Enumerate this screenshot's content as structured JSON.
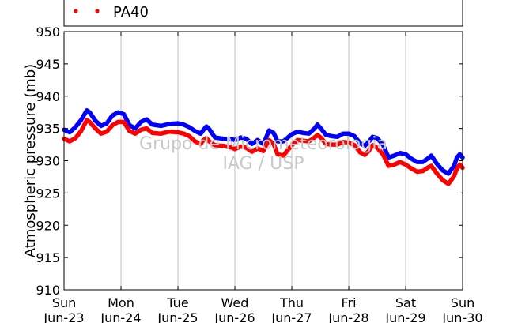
{
  "chart_data": {
    "type": "line",
    "ylabel": "Atmospheric pressure (mb)",
    "ylim": [
      910,
      950
    ],
    "yticks": [
      910,
      915,
      920,
      925,
      930,
      935,
      940,
      945,
      950
    ],
    "xlim": [
      0,
      7
    ],
    "xticks": [
      {
        "x": 0,
        "day": "Sun",
        "date": "Jun-23"
      },
      {
        "x": 1,
        "day": "Mon",
        "date": "Jun-24"
      },
      {
        "x": 2,
        "day": "Tue",
        "date": "Jun-25"
      },
      {
        "x": 3,
        "day": "Wed",
        "date": "Jun-26"
      },
      {
        "x": 4,
        "day": "Thu",
        "date": "Jun-27"
      },
      {
        "x": 5,
        "day": "Fri",
        "date": "Jun-28"
      },
      {
        "x": 6,
        "day": "Sat",
        "date": "Jun-29"
      },
      {
        "x": 7,
        "day": "Sun",
        "date": "Jun-30"
      }
    ],
    "grid": "vertical",
    "legend": {
      "placement": "top",
      "visible_entry": "PA40"
    },
    "watermark": [
      "Grupo de Micrometeorologia",
      "IAG / USP"
    ],
    "series": [
      {
        "color": "#0000ff",
        "points": [
          [
            0.0,
            934.8
          ],
          [
            0.1,
            934.4
          ],
          [
            0.2,
            935.2
          ],
          [
            0.3,
            936.3
          ],
          [
            0.4,
            937.8
          ],
          [
            0.45,
            937.5
          ],
          [
            0.55,
            936.2
          ],
          [
            0.65,
            935.4
          ],
          [
            0.75,
            935.8
          ],
          [
            0.85,
            937.0
          ],
          [
            0.95,
            937.5
          ],
          [
            1.05,
            937.2
          ],
          [
            1.15,
            935.5
          ],
          [
            1.25,
            935.0
          ],
          [
            1.35,
            936.0
          ],
          [
            1.45,
            936.4
          ],
          [
            1.55,
            935.6
          ],
          [
            1.7,
            935.4
          ],
          [
            1.85,
            935.7
          ],
          [
            2.0,
            935.8
          ],
          [
            2.1,
            935.6
          ],
          [
            2.2,
            935.2
          ],
          [
            2.3,
            934.6
          ],
          [
            2.4,
            934.2
          ],
          [
            2.45,
            934.8
          ],
          [
            2.5,
            935.3
          ],
          [
            2.55,
            934.9
          ],
          [
            2.65,
            933.6
          ],
          [
            2.8,
            933.4
          ],
          [
            2.95,
            933.3
          ],
          [
            3.0,
            933.2
          ],
          [
            3.1,
            933.6
          ],
          [
            3.2,
            933.4
          ],
          [
            3.3,
            932.6
          ],
          [
            3.4,
            933.2
          ],
          [
            3.5,
            932.6
          ],
          [
            3.55,
            933.6
          ],
          [
            3.6,
            934.7
          ],
          [
            3.68,
            934.3
          ],
          [
            3.75,
            933.0
          ],
          [
            3.85,
            933.0
          ],
          [
            4.0,
            934.1
          ],
          [
            4.1,
            934.5
          ],
          [
            4.2,
            934.3
          ],
          [
            4.3,
            934.2
          ],
          [
            4.4,
            935.0
          ],
          [
            4.45,
            935.6
          ],
          [
            4.52,
            934.9
          ],
          [
            4.6,
            934.0
          ],
          [
            4.7,
            933.8
          ],
          [
            4.8,
            933.7
          ],
          [
            4.9,
            934.2
          ],
          [
            5.0,
            934.2
          ],
          [
            5.1,
            933.8
          ],
          [
            5.2,
            932.7
          ],
          [
            5.28,
            932.3
          ],
          [
            5.35,
            932.9
          ],
          [
            5.42,
            933.7
          ],
          [
            5.5,
            933.5
          ],
          [
            5.6,
            932.5
          ],
          [
            5.7,
            930.5
          ],
          [
            5.8,
            930.8
          ],
          [
            5.9,
            931.2
          ],
          [
            6.0,
            931.0
          ],
          [
            6.1,
            930.3
          ],
          [
            6.2,
            929.8
          ],
          [
            6.3,
            929.8
          ],
          [
            6.4,
            930.4
          ],
          [
            6.45,
            930.8
          ],
          [
            6.55,
            929.5
          ],
          [
            6.65,
            928.5
          ],
          [
            6.75,
            928.0
          ],
          [
            6.85,
            929.2
          ],
          [
            6.9,
            930.5
          ],
          [
            6.95,
            931.0
          ],
          [
            7.0,
            930.5
          ]
        ]
      },
      {
        "color": "#ff0000",
        "points": [
          [
            0.0,
            933.4
          ],
          [
            0.1,
            933.0
          ],
          [
            0.2,
            933.5
          ],
          [
            0.3,
            934.6
          ],
          [
            0.4,
            936.3
          ],
          [
            0.45,
            936.0
          ],
          [
            0.55,
            935.0
          ],
          [
            0.65,
            934.2
          ],
          [
            0.75,
            934.5
          ],
          [
            0.85,
            935.5
          ],
          [
            0.95,
            936.0
          ],
          [
            1.05,
            936.0
          ],
          [
            1.15,
            934.6
          ],
          [
            1.25,
            934.2
          ],
          [
            1.35,
            934.8
          ],
          [
            1.45,
            935.0
          ],
          [
            1.55,
            934.3
          ],
          [
            1.7,
            934.2
          ],
          [
            1.85,
            934.5
          ],
          [
            2.0,
            934.4
          ],
          [
            2.1,
            934.2
          ],
          [
            2.2,
            933.8
          ],
          [
            2.3,
            933.0
          ],
          [
            2.4,
            932.6
          ],
          [
            2.45,
            933.2
          ],
          [
            2.5,
            933.5
          ],
          [
            2.55,
            933.0
          ],
          [
            2.65,
            932.4
          ],
          [
            2.8,
            932.3
          ],
          [
            2.95,
            932.0
          ],
          [
            3.0,
            931.8
          ],
          [
            3.1,
            932.2
          ],
          [
            3.2,
            932.0
          ],
          [
            3.3,
            931.4
          ],
          [
            3.4,
            931.9
          ],
          [
            3.5,
            931.5
          ],
          [
            3.55,
            932.4
          ],
          [
            3.6,
            933.2
          ],
          [
            3.68,
            932.6
          ],
          [
            3.75,
            931.0
          ],
          [
            3.85,
            930.8
          ],
          [
            4.0,
            932.4
          ],
          [
            4.1,
            933.2
          ],
          [
            4.2,
            933.1
          ],
          [
            4.3,
            933.0
          ],
          [
            4.4,
            933.6
          ],
          [
            4.45,
            934.0
          ],
          [
            4.52,
            933.5
          ],
          [
            4.6,
            932.6
          ],
          [
            4.7,
            932.5
          ],
          [
            4.8,
            932.5
          ],
          [
            4.9,
            932.9
          ],
          [
            5.0,
            932.8
          ],
          [
            5.1,
            932.4
          ],
          [
            5.2,
            931.3
          ],
          [
            5.28,
            930.9
          ],
          [
            5.35,
            931.5
          ],
          [
            5.42,
            932.4
          ],
          [
            5.5,
            932.0
          ],
          [
            5.6,
            931.0
          ],
          [
            5.7,
            929.2
          ],
          [
            5.8,
            929.4
          ],
          [
            5.9,
            929.8
          ],
          [
            6.0,
            929.4
          ],
          [
            6.1,
            928.8
          ],
          [
            6.2,
            928.3
          ],
          [
            6.3,
            928.4
          ],
          [
            6.4,
            929.0
          ],
          [
            6.45,
            929.2
          ],
          [
            6.55,
            928.0
          ],
          [
            6.65,
            927.0
          ],
          [
            6.75,
            926.4
          ],
          [
            6.85,
            927.6
          ],
          [
            6.9,
            928.8
          ],
          [
            6.95,
            929.4
          ],
          [
            7.0,
            928.9
          ]
        ]
      }
    ]
  }
}
